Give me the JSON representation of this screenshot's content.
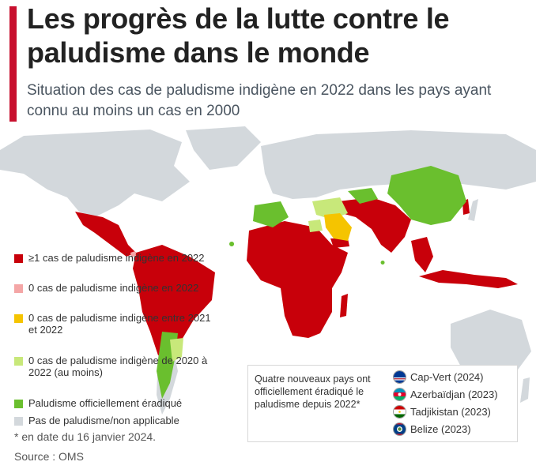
{
  "title": "Les progrès de la lutte contre le paludisme dans le monde",
  "subtitle": "Situation des cas de paludisme indigène en 2022 dans les pays ayant connu au moins un cas en 2000",
  "colors": {
    "accent": "#c8102e",
    "cases": "#c8000a",
    "zero_2022": "#f4a6a6",
    "zero_2021_2022": "#f5c400",
    "zero_2020_2022": "#c8e87a",
    "eradicated": "#6abf2e",
    "none": "#d3d8dc"
  },
  "legend": [
    {
      "label": "≥1 cas de paludisme indigène en 2022",
      "color_key": "cases"
    },
    {
      "label": "0 cas de paludisme indigène en 2022",
      "color_key": "zero_2022"
    },
    {
      "label": "0 cas de paludisme indigène entre 2021 et 2022",
      "color_key": "zero_2021_2022"
    },
    {
      "label": "0 cas de paludisme indigène de 2020 à 2022 (au moins)",
      "color_key": "zero_2020_2022"
    },
    {
      "label": "Paludisme officiellement éradiqué",
      "color_key": "eradicated"
    },
    {
      "label": "Pas de paludisme/non applicable",
      "color_key": "none"
    }
  ],
  "info_box": {
    "text": "Quatre nouveaux pays ont officiellement éradiqué le paludisme depuis 2022*",
    "countries": [
      {
        "name": "Cap-Vert (2024)",
        "flag": "cape-verde-flag-icon"
      },
      {
        "name": "Azerbaïdjan (2023)",
        "flag": "azerbaijan-flag-icon"
      },
      {
        "name": "Tadjikistan (2023)",
        "flag": "tajikistan-flag-icon"
      },
      {
        "name": "Belize (2023)",
        "flag": "belize-flag-icon"
      }
    ]
  },
  "footnote": "* en date du 16 janvier 2024.",
  "source": "Source : OMS"
}
